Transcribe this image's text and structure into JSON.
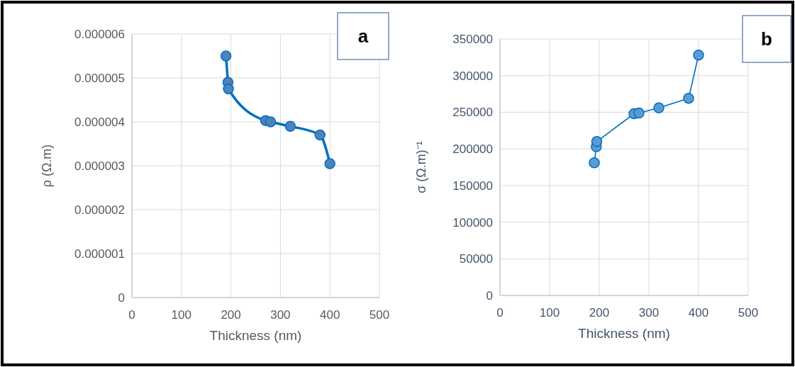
{
  "chart_data": [
    {
      "type": "line",
      "xlabel": "Thickness (nm)",
      "ylabel": "ρ (Ω.m)",
      "annotations": [
        "a"
      ],
      "x": [
        190,
        194,
        195,
        270,
        280,
        320,
        380,
        400
      ],
      "xlim": [
        0,
        500
      ],
      "xticks": [
        0,
        100,
        200,
        300,
        400,
        500
      ],
      "ylim": [
        0,
        6e-06
      ],
      "yticks": [
        0,
        {
          "value": 1e-06,
          "label": "0.000001"
        },
        {
          "value": 2e-06,
          "label": "0.000002"
        },
        {
          "value": 3e-06,
          "label": "0.000003"
        },
        {
          "value": 4e-06,
          "label": "0.000004"
        },
        {
          "value": 5e-06,
          "label": "0.000005"
        },
        {
          "value": 6e-06,
          "label": "0.000006"
        }
      ],
      "grid": true,
      "marker": "circle",
      "line_style": "solid",
      "series": [
        {
          "color": "#0070c0",
          "values": [
            5.5e-06,
            4.9e-06,
            4.75e-06,
            4.03e-06,
            4e-06,
            3.9e-06,
            3.7e-06,
            3.05e-06
          ]
        }
      ]
    },
    {
      "type": "line",
      "xlabel": "Thickness (nm)",
      "ylabel": "σ (Ω.m)⁻¹",
      "annotations": [
        "b"
      ],
      "x": [
        190,
        194,
        195,
        270,
        280,
        320,
        380,
        400
      ],
      "xlim": [
        0,
        500
      ],
      "xticks": [
        0,
        100,
        200,
        300,
        400,
        500
      ],
      "ylim": [
        0,
        350000
      ],
      "yticks": [
        0,
        50000,
        100000,
        150000,
        200000,
        250000,
        300000,
        350000
      ],
      "grid": true,
      "marker": "circle",
      "line_style": "solid",
      "series": [
        {
          "color": "#0070c0",
          "values": [
            181000,
            203000,
            210000,
            248000,
            249000,
            256000,
            269000,
            328000
          ]
        }
      ]
    }
  ]
}
